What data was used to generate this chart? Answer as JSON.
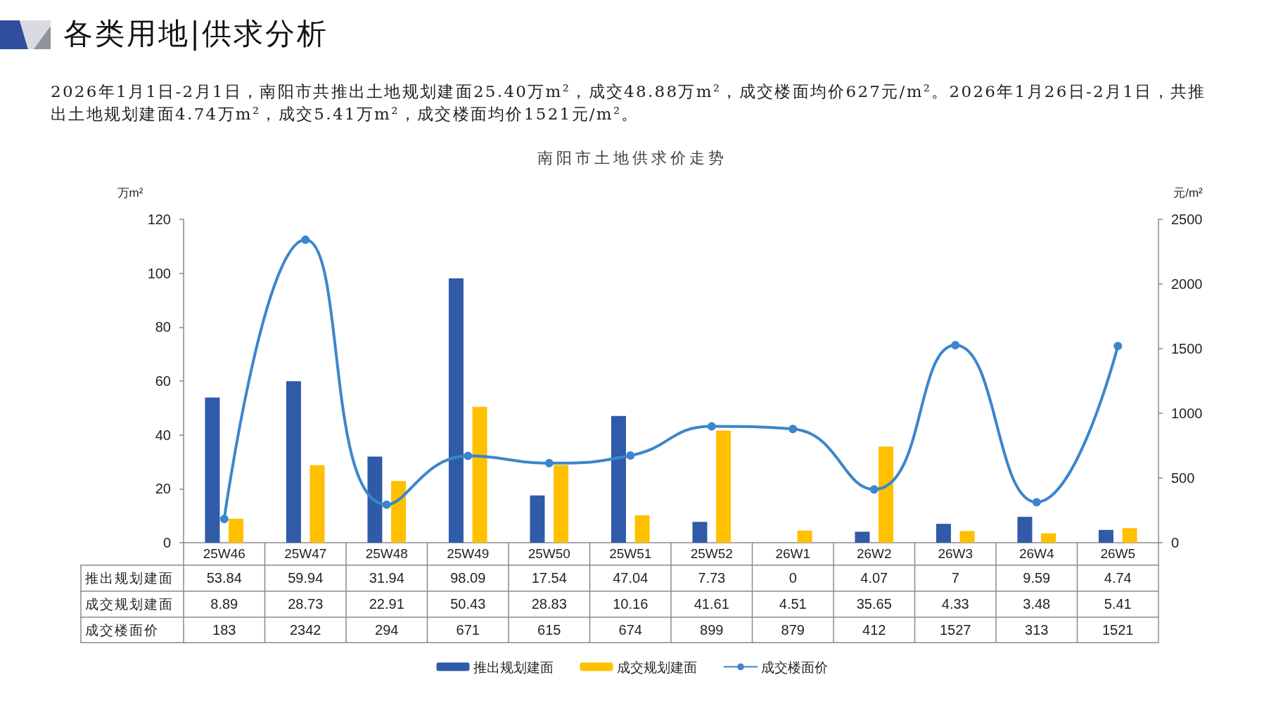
{
  "chart_data": {
    "type": "bar",
    "title": "各类用地|供求分析",
    "subtitle": "南阳市土地供求价走势",
    "annotations": [
      "2026年1月1日-2月1日，南阳市共推出土地规划建面25.40万m²，成交48.88万m²，成交楼面均价627元/m²。2026年1月26日-2月1日，共推出土地规划建面4.74万m²，成交5.41万m²，成交楼面均价1521元/m²。"
    ],
    "ylabel": "万m²",
    "y2label": "元/m²",
    "categories": [
      "25W46",
      "25W47",
      "25W48",
      "25W49",
      "25W50",
      "25W51",
      "25W52",
      "26W1",
      "26W2",
      "26W3",
      "26W4",
      "26W5"
    ],
    "series": [
      {
        "name": "推出规划建面",
        "color": "#2f5ba8",
        "values": [
          53.84,
          59.94,
          31.94,
          98.09,
          17.54,
          47.04,
          7.73,
          0,
          4.07,
          7,
          9.59,
          4.74
        ]
      },
      {
        "name": "成交规划建面",
        "color": "#ffc000",
        "values": [
          8.89,
          28.73,
          22.91,
          50.43,
          28.83,
          10.16,
          41.61,
          4.51,
          35.65,
          4.33,
          3.48,
          5.41
        ]
      },
      {
        "name": "成交楼面价",
        "type": "line",
        "axis": "y2",
        "color": "#3b86cc",
        "values": [
          183,
          2342,
          294,
          671,
          615,
          674,
          899,
          879,
          412,
          1527,
          313,
          1521
        ]
      }
    ],
    "ylim": [
      0,
      120
    ],
    "yticks": [
      0,
      20,
      40,
      60,
      80,
      100,
      120
    ],
    "y2lim": [
      0,
      2500
    ],
    "y2ticks": [
      0,
      500,
      1000,
      1500,
      2000,
      2500
    ],
    "data_labels": true,
    "legend": "bottom",
    "marker": "circle",
    "line_style": "solid"
  }
}
